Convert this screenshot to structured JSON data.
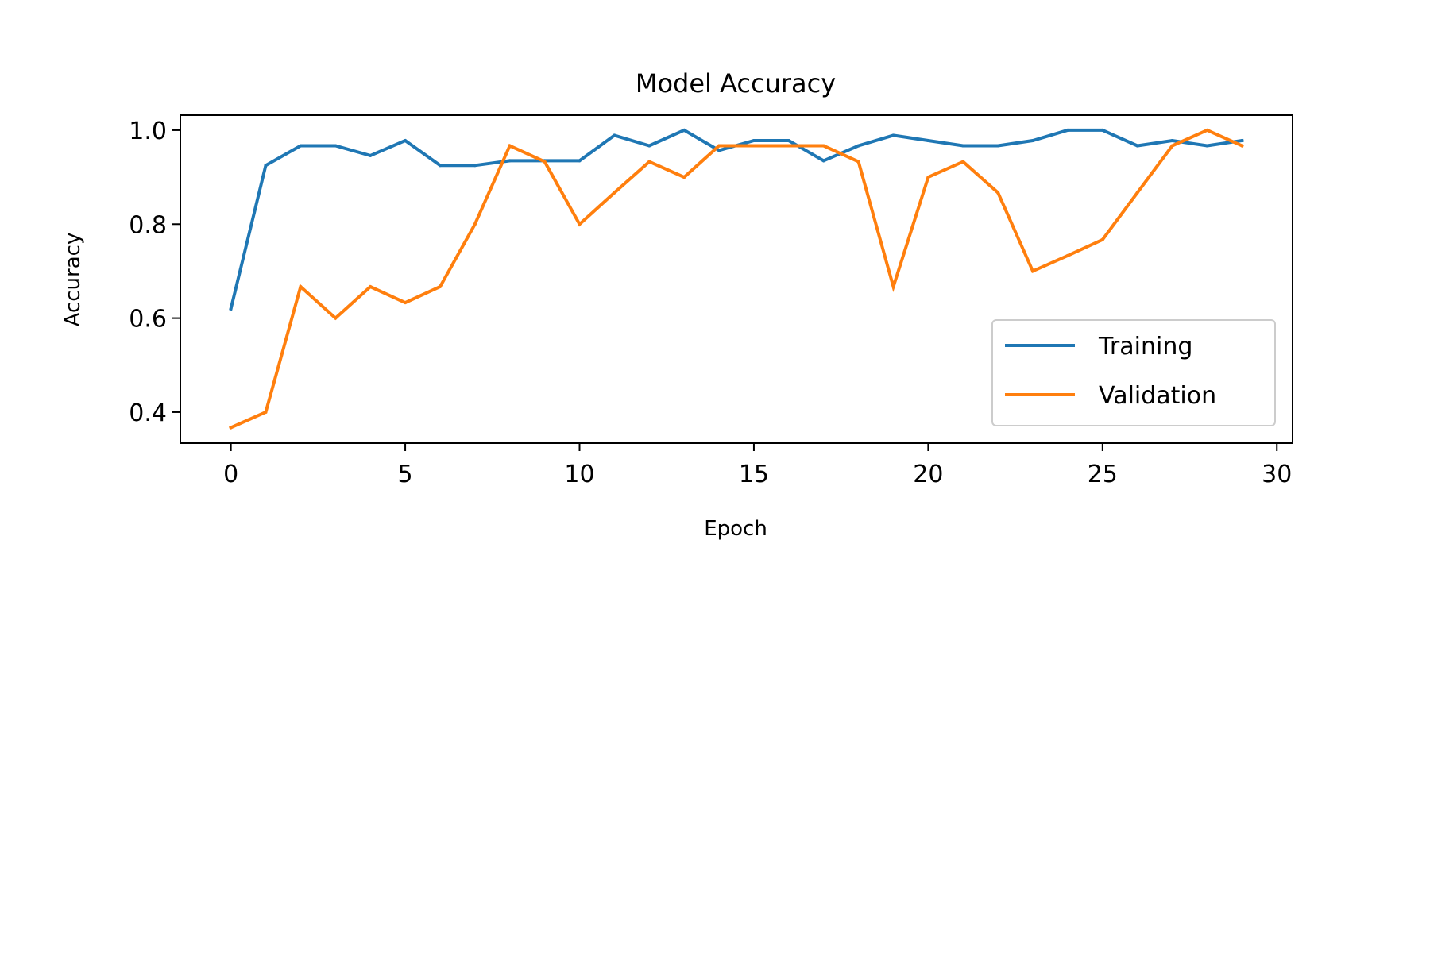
{
  "chart_data": {
    "type": "line",
    "title": "Model Accuracy",
    "xlabel": "Epoch",
    "ylabel": "Accuracy",
    "xlim": [
      -1.45,
      30.45
    ],
    "ylim": [
      0.334,
      1.032
    ],
    "xticks": [
      0,
      5,
      10,
      15,
      20,
      25,
      30
    ],
    "xtick_labels": [
      "0",
      "5",
      "10",
      "15",
      "20",
      "25",
      "30"
    ],
    "yticks": [
      0.4,
      0.6,
      0.8,
      1.0
    ],
    "ytick_labels": [
      "0.4",
      "0.6",
      "0.8",
      "1.0"
    ],
    "grid": false,
    "legend_position": "lower-right",
    "x": [
      0,
      1,
      2,
      3,
      4,
      5,
      6,
      7,
      8,
      9,
      10,
      11,
      12,
      13,
      14,
      15,
      16,
      17,
      18,
      19,
      20,
      21,
      22,
      23,
      24,
      25,
      26,
      27,
      28,
      29
    ],
    "series": [
      {
        "name": "Training",
        "color": "#1f77b4",
        "values": [
          0.62,
          0.925,
          0.967,
          0.967,
          0.946,
          0.978,
          0.925,
          0.925,
          0.935,
          0.935,
          0.935,
          0.989,
          0.967,
          1.0,
          0.957,
          0.978,
          0.978,
          0.935,
          0.967,
          0.989,
          0.978,
          0.967,
          0.967,
          0.978,
          1.0,
          1.0,
          0.967,
          0.978,
          0.967,
          0.978
        ]
      },
      {
        "name": "Validation",
        "color": "#ff7f0e",
        "values": [
          0.367,
          0.4,
          0.667,
          0.6,
          0.667,
          0.633,
          0.667,
          0.8,
          0.967,
          0.933,
          0.8,
          0.867,
          0.933,
          0.9,
          0.967,
          0.967,
          0.967,
          0.967,
          0.933,
          0.667,
          0.9,
          0.933,
          0.867,
          0.7,
          0.733,
          0.767,
          0.867,
          0.967,
          1.0,
          0.967
        ]
      }
    ]
  }
}
